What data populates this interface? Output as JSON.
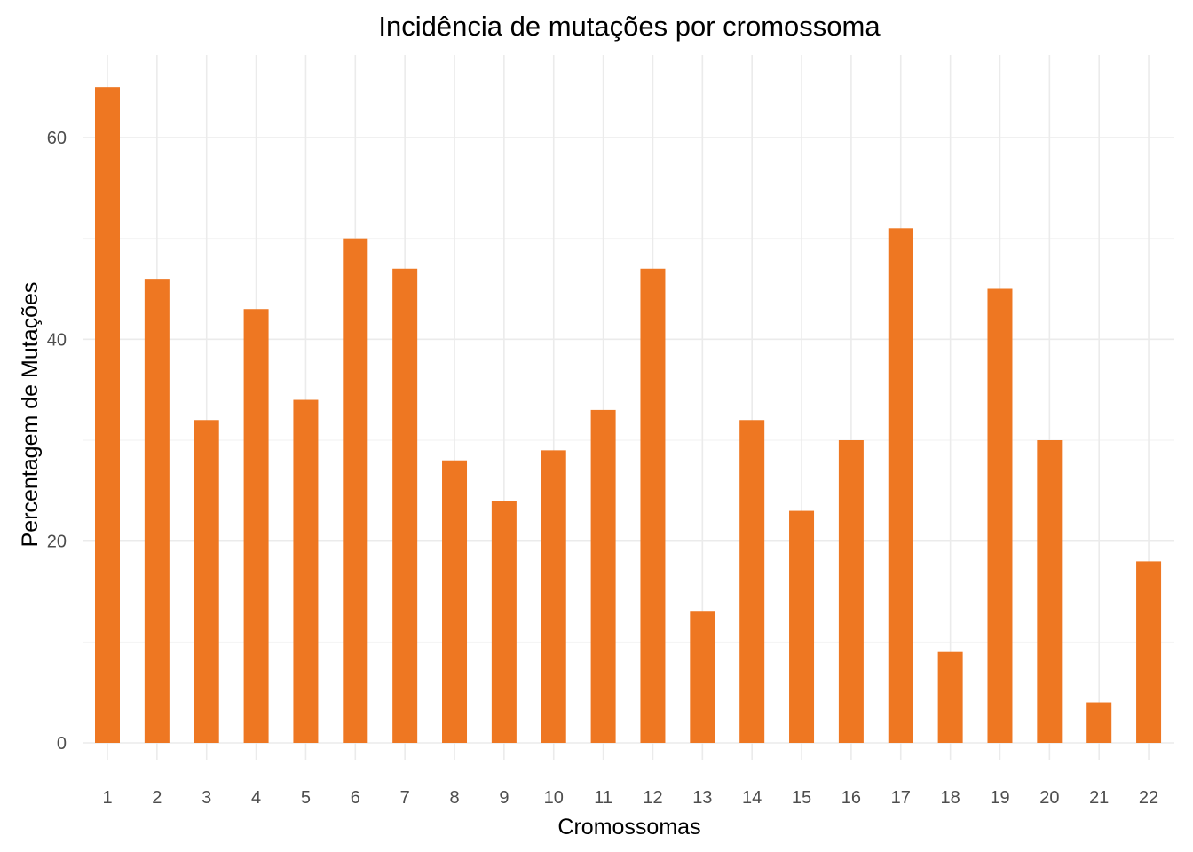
{
  "chart_data": {
    "type": "bar",
    "title": "Incidência de mutações por cromossoma",
    "xlabel": "Cromossomas",
    "ylabel": "Percentagem de Mutações",
    "categories": [
      "1",
      "2",
      "3",
      "4",
      "5",
      "6",
      "7",
      "8",
      "9",
      "10",
      "11",
      "12",
      "13",
      "14",
      "15",
      "16",
      "17",
      "18",
      "19",
      "20",
      "21",
      "22"
    ],
    "values": [
      65,
      46,
      32,
      43,
      34,
      50,
      47,
      28,
      24,
      29,
      33,
      47,
      13,
      32,
      23,
      30,
      51,
      9,
      45,
      30,
      4,
      18
    ],
    "ylim": [
      0,
      68
    ],
    "yticks": [
      0,
      20,
      40,
      60
    ],
    "grid": true,
    "legend": "none",
    "colors": {
      "bar": "#ee7722"
    }
  }
}
